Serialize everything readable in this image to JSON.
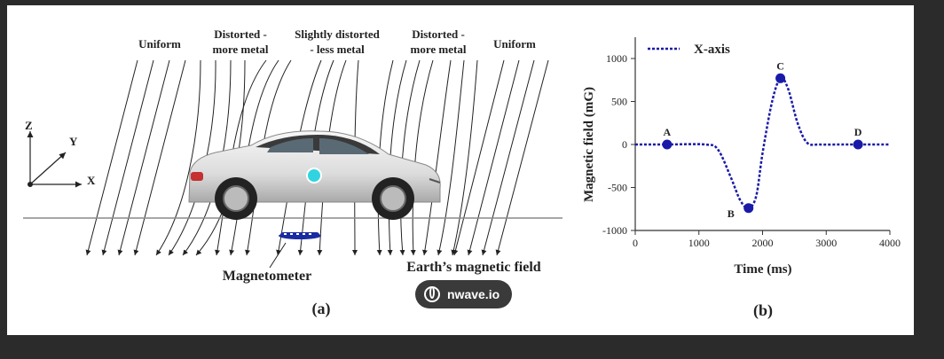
{
  "panel_a": {
    "field_labels": {
      "uniform_left": "Uniform",
      "distorted_left_1": "Distorted -",
      "distorted_left_2": "more metal",
      "slight_1": "Slightly distorted",
      "slight_2": "- less metal",
      "distorted_right_1": "Distorted -",
      "distorted_right_2": "more metal",
      "uniform_right": "Uniform"
    },
    "axes": {
      "z": "Z",
      "y": "Y",
      "x": "X"
    },
    "magnetometer_label": "Magnetometer",
    "earth_field_label": "Earth’s magnetic field",
    "caption": "(a)",
    "sensor_color": "#2fd4e0"
  },
  "panel_b": {
    "caption": "(b)",
    "chart_data": {
      "type": "line",
      "xlabel": "Time (ms)",
      "ylabel": "Magnetic field (mG)",
      "xlim": [
        0,
        4000
      ],
      "ylim": [
        -1000,
        1000
      ],
      "xticks": [
        0,
        1000,
        2000,
        3000,
        4000
      ],
      "yticks": [
        -1000,
        -500,
        0,
        500,
        1000
      ],
      "legend_position": "top-left",
      "series": [
        {
          "name": "X-axis",
          "color": "#1a1aa8",
          "style": "dotted",
          "x": [
            0,
            500,
            1100,
            1300,
            1500,
            1650,
            1780,
            1900,
            2000,
            2150,
            2280,
            2400,
            2550,
            2700,
            2900,
            3200,
            3500,
            4000
          ],
          "y": [
            0,
            0,
            0,
            -60,
            -380,
            -650,
            -740,
            -600,
            -100,
            500,
            770,
            650,
            250,
            20,
            0,
            0,
            0,
            0
          ]
        }
      ],
      "points": [
        {
          "label": "A",
          "x": 500,
          "y": 0
        },
        {
          "label": "B",
          "x": 1780,
          "y": -740
        },
        {
          "label": "C",
          "x": 2280,
          "y": 770
        },
        {
          "label": "D",
          "x": 3500,
          "y": 0
        }
      ]
    }
  },
  "watermark": {
    "text": "nwave.io"
  }
}
